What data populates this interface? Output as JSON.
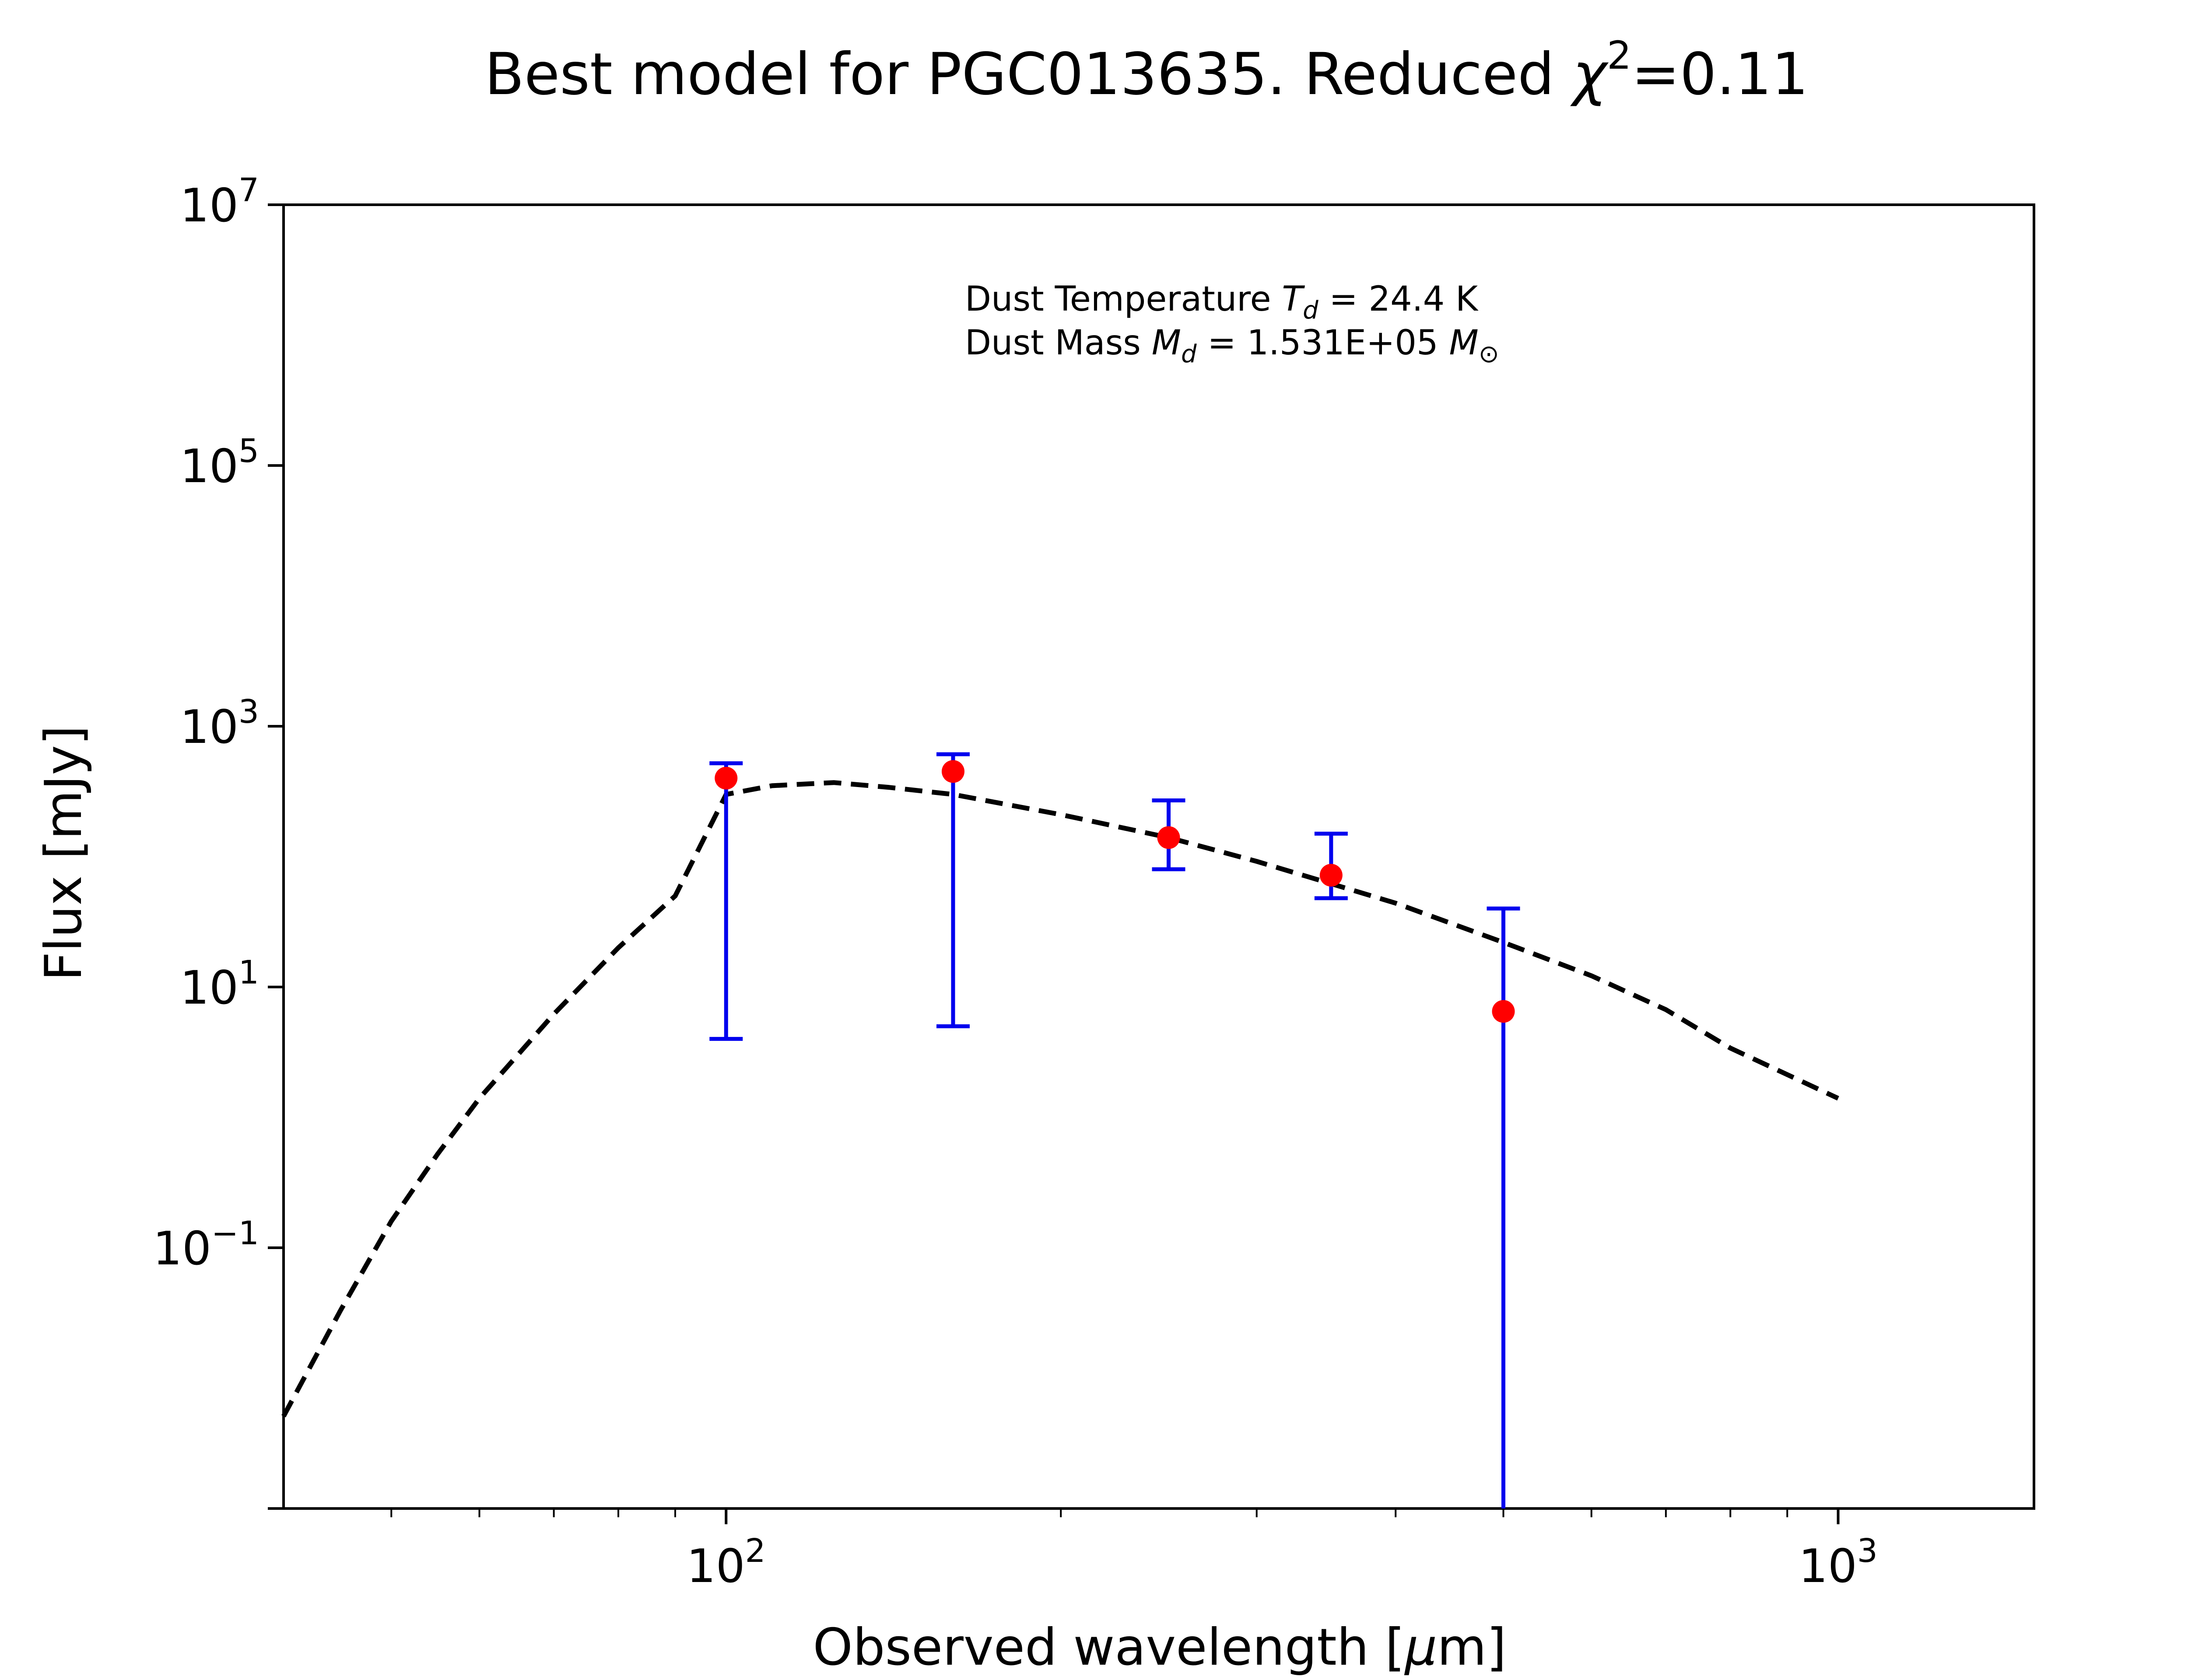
{
  "chart_data": {
    "type": "scatter",
    "title": "Best model for PGC013635. Reduced χ²=0.11",
    "title_parts": {
      "prefix": "Best model for PGC013635. Reduced ",
      "chi": "χ",
      "sup": "2",
      "suffix": "=0.11"
    },
    "xlabel": "Observed wavelength [μm]",
    "xlabel_parts": {
      "prefix": "Observed wavelength [",
      "mu": "μ",
      "suffix": "m]"
    },
    "ylabel": "Flux [mJy]",
    "xscale": "log",
    "yscale": "log",
    "xlim": [
      40,
      1500
    ],
    "ylim": [
      0.001,
      10000000
    ],
    "grid": false,
    "x_ticks": [
      {
        "base": "10",
        "exp": "2",
        "value": 100
      },
      {
        "base": "10",
        "exp": "3",
        "value": 1000
      }
    ],
    "y_ticks": [
      {
        "base": "10",
        "exp": "−1",
        "value": 0.1
      },
      {
        "base": "10",
        "exp": "1",
        "value": 10
      },
      {
        "base": "10",
        "exp": "3",
        "value": 1000
      },
      {
        "base": "10",
        "exp": "5",
        "value": 100000
      },
      {
        "base": "10",
        "exp": "7",
        "value": 10000000
      }
    ],
    "x_minor_ticks": [
      50,
      60,
      70,
      80,
      90,
      200,
      300,
      400,
      500,
      600,
      700,
      800,
      900
    ],
    "annotation": {
      "line1": {
        "prefix": "Dust Temperature ",
        "sym": "T",
        "sub": "d",
        "value": " = 24.4 K"
      },
      "line2": {
        "prefix": "Dust Mass ",
        "sym": "M",
        "sub": "d",
        "value": " = 1.531E+05 ",
        "unit_sym": "M",
        "unit_sub": "⊙"
      }
    },
    "observed": {
      "x": [
        100,
        160,
        250,
        350,
        500
      ],
      "y": [
        400,
        450,
        140,
        72,
        6.5
      ],
      "yerr_low": [
        4,
        5,
        80,
        48,
        0.001
      ],
      "yerr_high": [
        520,
        610,
        270,
        150,
        40
      ],
      "marker_color": "#ff0000",
      "errorbar_color": "#0000ee"
    },
    "model": {
      "style": "dashed",
      "color": "#000000",
      "x": [
        40,
        45,
        50,
        55,
        60,
        70,
        80,
        90,
        100,
        110,
        125,
        140,
        160,
        200,
        250,
        300,
        350,
        400,
        500,
        600,
        700,
        800,
        1000
      ],
      "y": [
        0.0051,
        0.033,
        0.16,
        0.52,
        1.4,
        6.2,
        20,
        50,
        300,
        350,
        370,
        340,
        300,
        210,
        140,
        92,
        62,
        44,
        22,
        12.2,
        6.7,
        3.4,
        1.4
      ]
    }
  }
}
